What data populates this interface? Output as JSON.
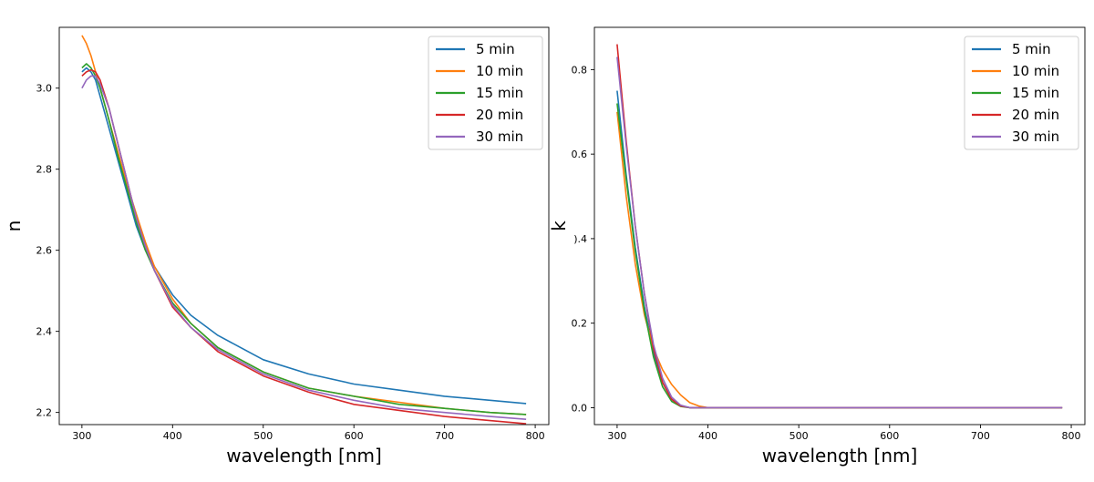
{
  "chart_data": [
    {
      "type": "line",
      "xlabel": "wavelength [nm]",
      "ylabel": "n",
      "xlim": [
        275,
        815
      ],
      "ylim": [
        2.17,
        3.15
      ],
      "xticks": [
        300,
        400,
        500,
        600,
        700,
        800
      ],
      "xtick_labels": [
        "300",
        "400",
        "500",
        "600",
        "700",
        "800"
      ],
      "yticks": [
        2.2,
        2.4,
        2.6,
        2.8,
        3.0
      ],
      "ytick_labels": [
        "2.2",
        "2.4",
        "2.6",
        "2.8",
        "3.0"
      ],
      "legend": "top-right",
      "grid": false,
      "x": [
        300,
        305,
        310,
        315,
        320,
        330,
        340,
        350,
        360,
        370,
        380,
        400,
        420,
        450,
        500,
        550,
        600,
        650,
        700,
        750,
        790
      ],
      "series": [
        {
          "name": "5 min",
          "color": "#1f77b4",
          "values": [
            3.04,
            3.05,
            3.04,
            3.02,
            2.98,
            2.9,
            2.82,
            2.74,
            2.66,
            2.6,
            2.56,
            2.49,
            2.44,
            2.39,
            2.33,
            2.295,
            2.27,
            2.255,
            2.24,
            2.23,
            2.222
          ]
        },
        {
          "name": "10 min",
          "color": "#ff7f0e",
          "values": [
            3.13,
            3.11,
            3.08,
            3.04,
            3.0,
            2.92,
            2.84,
            2.76,
            2.69,
            2.62,
            2.56,
            2.48,
            2.42,
            2.36,
            2.3,
            2.26,
            2.24,
            2.225,
            2.21,
            2.2,
            2.195
          ]
        },
        {
          "name": "15 min",
          "color": "#2ca02c",
          "values": [
            3.05,
            3.06,
            3.05,
            3.03,
            3.0,
            2.92,
            2.83,
            2.75,
            2.67,
            2.6,
            2.55,
            2.47,
            2.42,
            2.36,
            2.3,
            2.26,
            2.24,
            2.22,
            2.21,
            2.2,
            2.195
          ]
        },
        {
          "name": "20 min",
          "color": "#d62728",
          "values": [
            3.03,
            3.04,
            3.045,
            3.04,
            3.02,
            2.95,
            2.86,
            2.77,
            2.68,
            2.61,
            2.55,
            2.46,
            2.41,
            2.35,
            2.29,
            2.25,
            2.22,
            2.205,
            2.19,
            2.18,
            2.172
          ]
        },
        {
          "name": "30 min",
          "color": "#9467bd",
          "values": [
            3.0,
            3.02,
            3.03,
            3.03,
            3.01,
            2.95,
            2.86,
            2.77,
            2.68,
            2.61,
            2.55,
            2.465,
            2.41,
            2.355,
            2.295,
            2.255,
            2.23,
            2.21,
            2.2,
            2.19,
            2.183
          ]
        }
      ]
    },
    {
      "type": "line",
      "xlabel": "wavelength [nm]",
      "ylabel": "k",
      "xlim": [
        275,
        815
      ],
      "ylim": [
        -0.04,
        0.9
      ],
      "xticks": [
        300,
        400,
        500,
        600,
        700,
        800
      ],
      "xtick_labels": [
        "300",
        "400",
        "500",
        "600",
        "700",
        "800"
      ],
      "yticks": [
        0.0,
        0.2,
        0.4,
        0.6,
        0.8
      ],
      "ytick_labels": [
        "0.0",
        "0.2",
        ").4",
        "0.6",
        "0.8"
      ],
      "legend": "top-right",
      "grid": false,
      "x": [
        300,
        310,
        320,
        330,
        340,
        350,
        360,
        370,
        380,
        390,
        400,
        410,
        450,
        500,
        600,
        700,
        790
      ],
      "series": [
        {
          "name": "5 min",
          "color": "#1f77b4",
          "values": [
            0.75,
            0.55,
            0.38,
            0.24,
            0.13,
            0.06,
            0.02,
            0.005,
            0.0,
            0.0,
            0.0,
            0.0,
            0.0,
            0.0,
            0.0,
            0.0,
            0.0
          ]
        },
        {
          "name": "10 min",
          "color": "#ff7f0e",
          "values": [
            0.7,
            0.5,
            0.34,
            0.22,
            0.14,
            0.09,
            0.055,
            0.03,
            0.012,
            0.004,
            0.0,
            0.0,
            0.0,
            0.0,
            0.0,
            0.0,
            0.0
          ]
        },
        {
          "name": "15 min",
          "color": "#2ca02c",
          "values": [
            0.72,
            0.54,
            0.37,
            0.23,
            0.12,
            0.05,
            0.015,
            0.003,
            0.0,
            0.0,
            0.0,
            0.0,
            0.0,
            0.0,
            0.0,
            0.0,
            0.0
          ]
        },
        {
          "name": "20 min",
          "color": "#d62728",
          "values": [
            0.86,
            0.63,
            0.43,
            0.27,
            0.14,
            0.06,
            0.02,
            0.004,
            0.0,
            0.0,
            0.0,
            0.0,
            0.0,
            0.0,
            0.0,
            0.0,
            0.0
          ]
        },
        {
          "name": "30 min",
          "color": "#9467bd",
          "values": [
            0.83,
            0.62,
            0.43,
            0.27,
            0.15,
            0.07,
            0.025,
            0.006,
            0.0,
            0.0,
            0.0,
            0.0,
            0.0,
            0.0,
            0.0,
            0.0,
            0.0
          ]
        }
      ]
    }
  ]
}
